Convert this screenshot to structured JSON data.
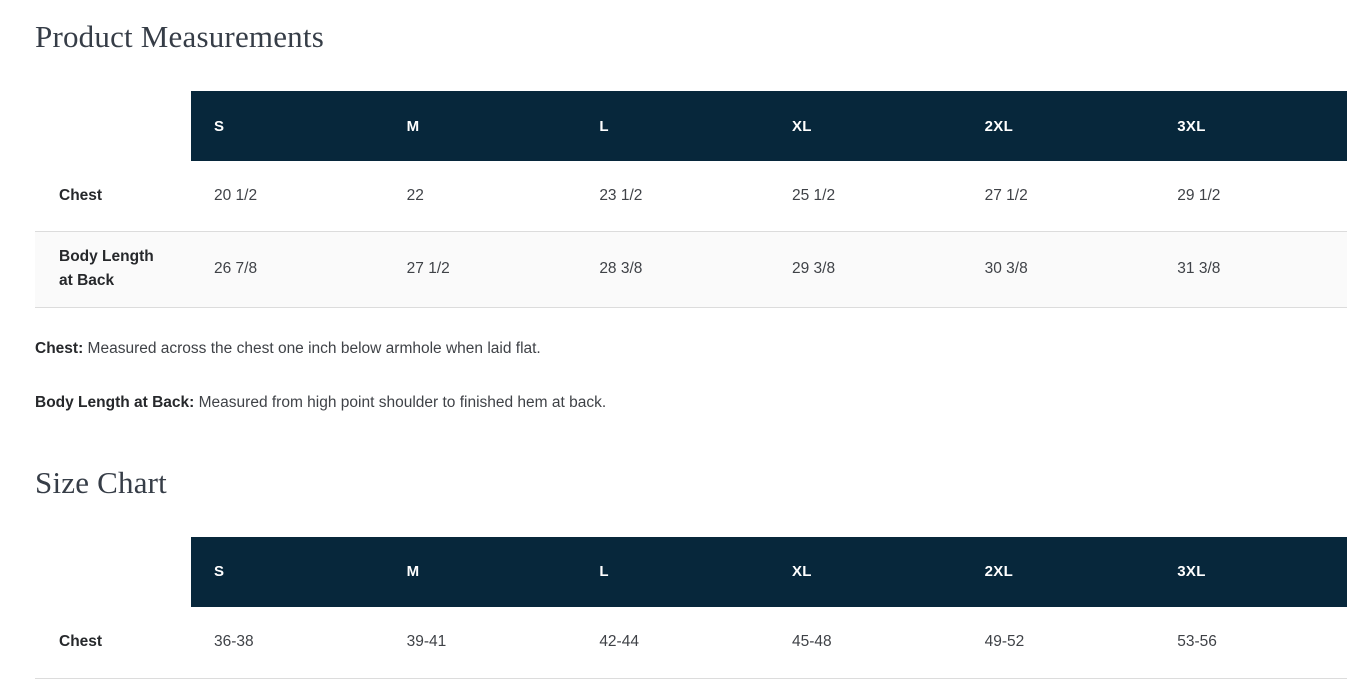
{
  "colors": {
    "header_bg": "#07273b",
    "header_text": "#ffffff",
    "alt_row_bg": "#fafafa",
    "divider": "#dcdcdc",
    "title_text": "#363d47",
    "body_text": "#3f4247"
  },
  "product_measurements": {
    "title": "Product Measurements",
    "columns": [
      "S",
      "M",
      "L",
      "XL",
      "2XL",
      "3XL"
    ],
    "rows": [
      {
        "label": "Chest",
        "values": [
          "20 1/2",
          "22",
          "23 1/2",
          "25 1/2",
          "27 1/2",
          "29 1/2"
        ]
      },
      {
        "label": "Body Length at Back",
        "values": [
          "26 7/8",
          "27 1/2",
          "28 3/8",
          "29 3/8",
          "30 3/8",
          "31 3/8"
        ]
      }
    ]
  },
  "notes": [
    {
      "term": "Chest:",
      "text": "Measured across the chest one inch below armhole when laid flat."
    },
    {
      "term": "Body Length at Back:",
      "text": "Measured from high point shoulder to finished hem at back."
    }
  ],
  "size_chart": {
    "title": "Size Chart",
    "columns": [
      "S",
      "M",
      "L",
      "XL",
      "2XL",
      "3XL"
    ],
    "rows": [
      {
        "label": "Chest",
        "values": [
          "36-38",
          "39-41",
          "42-44",
          "45-48",
          "49-52",
          "53-56"
        ]
      }
    ]
  }
}
